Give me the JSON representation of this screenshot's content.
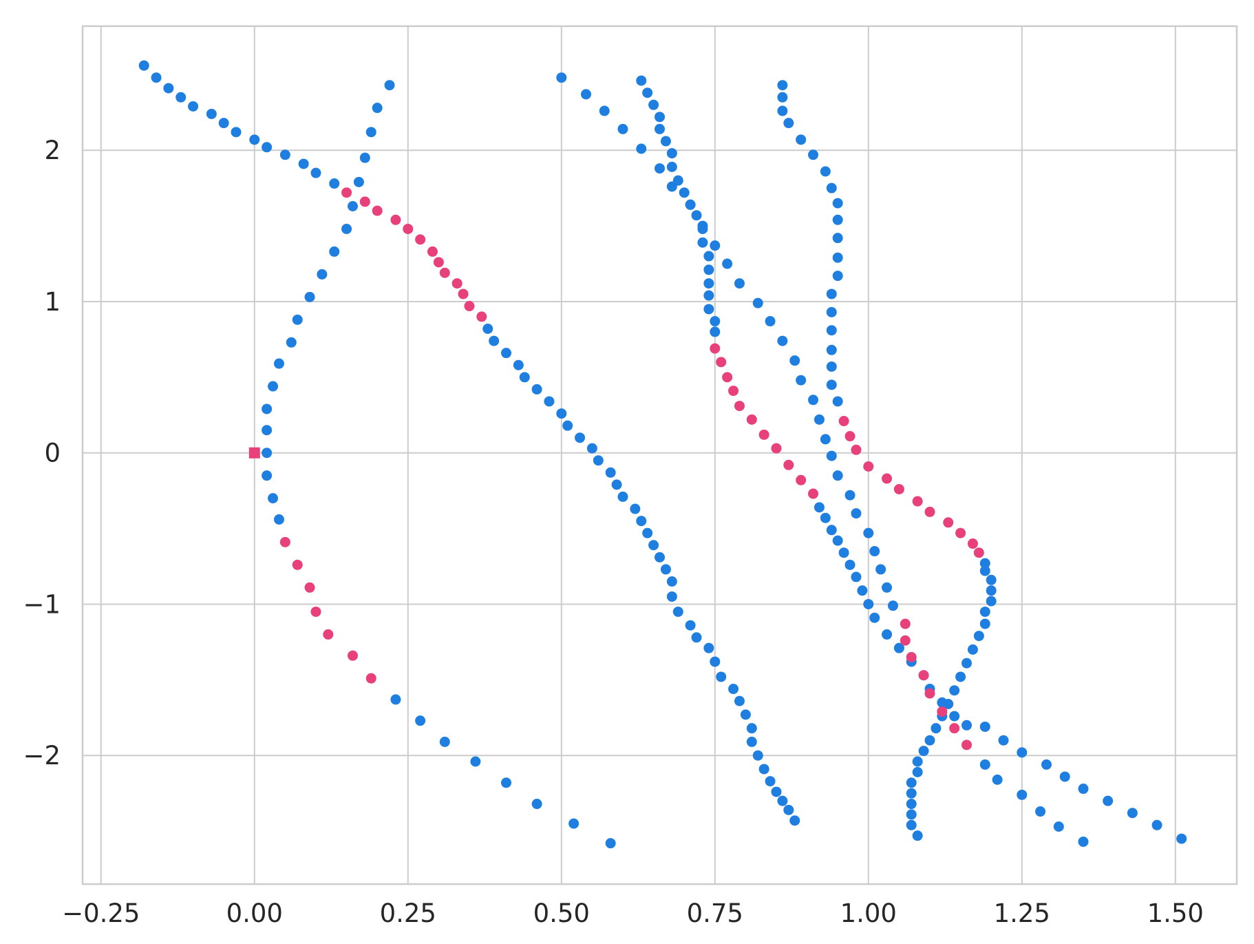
{
  "chart_data": {
    "type": "scatter",
    "title": "",
    "xlabel": "",
    "ylabel": "",
    "xlim": [
      -0.28,
      1.6
    ],
    "ylim": [
      -2.85,
      2.82
    ],
    "grid": true,
    "legend": "none",
    "x_ticks": [
      -0.25,
      0.0,
      0.25,
      0.5,
      0.75,
      1.0,
      1.25,
      1.5
    ],
    "x_tick_labels": [
      "−0.25",
      "0.00",
      "0.25",
      "0.50",
      "0.75",
      "1.00",
      "1.25",
      "1.50"
    ],
    "y_ticks": [
      -2,
      -1,
      0,
      1,
      2
    ],
    "y_tick_labels": [
      "−2",
      "−1",
      "0",
      "1",
      "2"
    ],
    "colors": {
      "blue": "#1e7fe0",
      "pink": "#e8407a"
    },
    "series": [
      {
        "color": "#1e7fe0",
        "marker": "circle",
        "points": [
          [
            -0.18,
            2.56
          ],
          [
            -0.16,
            2.48
          ],
          [
            -0.14,
            2.41
          ],
          [
            -0.12,
            2.35
          ],
          [
            -0.1,
            2.29
          ],
          [
            -0.07,
            2.24
          ],
          [
            -0.05,
            2.18
          ],
          [
            -0.03,
            2.12
          ],
          [
            0.0,
            2.07
          ],
          [
            0.02,
            2.02
          ],
          [
            0.05,
            1.97
          ],
          [
            0.08,
            1.91
          ],
          [
            0.1,
            1.85
          ],
          [
            0.13,
            1.78
          ],
          [
            0.22,
            2.43
          ],
          [
            0.2,
            2.28
          ],
          [
            0.19,
            2.12
          ],
          [
            0.18,
            1.95
          ],
          [
            0.17,
            1.79
          ],
          [
            0.16,
            1.63
          ],
          [
            0.15,
            1.48
          ],
          [
            0.13,
            1.33
          ],
          [
            0.11,
            1.18
          ],
          [
            0.09,
            1.03
          ],
          [
            0.07,
            0.88
          ],
          [
            0.06,
            0.73
          ],
          [
            0.04,
            0.59
          ],
          [
            0.03,
            0.44
          ],
          [
            0.02,
            0.29
          ],
          [
            0.02,
            0.15
          ],
          [
            0.02,
            0.0
          ],
          [
            0.02,
            -0.15
          ],
          [
            0.03,
            -0.3
          ],
          [
            0.04,
            -0.44
          ],
          [
            0.23,
            -1.63
          ],
          [
            0.27,
            -1.77
          ],
          [
            0.31,
            -1.91
          ],
          [
            0.36,
            -2.04
          ],
          [
            0.41,
            -2.18
          ],
          [
            0.46,
            -2.32
          ],
          [
            0.52,
            -2.45
          ],
          [
            0.58,
            -2.58
          ],
          [
            0.38,
            0.82
          ],
          [
            0.39,
            0.74
          ],
          [
            0.41,
            0.66
          ],
          [
            0.43,
            0.58
          ],
          [
            0.44,
            0.5
          ],
          [
            0.46,
            0.42
          ],
          [
            0.48,
            0.34
          ],
          [
            0.5,
            0.26
          ],
          [
            0.51,
            0.18
          ],
          [
            0.53,
            0.1
          ],
          [
            0.55,
            0.03
          ],
          [
            0.56,
            -0.05
          ],
          [
            0.58,
            -0.13
          ],
          [
            0.59,
            -0.21
          ],
          [
            0.6,
            -0.29
          ],
          [
            0.62,
            -0.37
          ],
          [
            0.63,
            -0.45
          ],
          [
            0.64,
            -0.53
          ],
          [
            0.65,
            -0.61
          ],
          [
            0.66,
            -0.69
          ],
          [
            0.67,
            -0.77
          ],
          [
            0.68,
            -0.85
          ],
          [
            0.68,
            -0.95
          ],
          [
            0.69,
            -1.05
          ],
          [
            0.71,
            -1.14
          ],
          [
            0.72,
            -1.22
          ],
          [
            0.74,
            -1.29
          ],
          [
            0.75,
            -1.38
          ],
          [
            0.76,
            -1.48
          ],
          [
            0.78,
            -1.56
          ],
          [
            0.79,
            -1.64
          ],
          [
            0.8,
            -1.73
          ],
          [
            0.81,
            -1.82
          ],
          [
            0.81,
            -1.91
          ],
          [
            0.82,
            -2.0
          ],
          [
            0.83,
            -2.09
          ],
          [
            0.84,
            -2.17
          ],
          [
            0.85,
            -2.24
          ],
          [
            0.86,
            -2.3
          ],
          [
            0.87,
            -2.36
          ],
          [
            0.88,
            -2.43
          ],
          [
            0.5,
            2.48
          ],
          [
            0.54,
            2.37
          ],
          [
            0.57,
            2.26
          ],
          [
            0.6,
            2.14
          ],
          [
            0.63,
            2.01
          ],
          [
            0.66,
            1.88
          ],
          [
            0.68,
            1.76
          ],
          [
            0.71,
            1.64
          ],
          [
            0.73,
            1.5
          ],
          [
            0.63,
            2.46
          ],
          [
            0.64,
            2.38
          ],
          [
            0.65,
            2.3
          ],
          [
            0.66,
            2.22
          ],
          [
            0.66,
            2.14
          ],
          [
            0.67,
            2.06
          ],
          [
            0.68,
            1.98
          ],
          [
            0.68,
            1.89
          ],
          [
            0.69,
            1.8
          ],
          [
            0.7,
            1.72
          ],
          [
            0.71,
            1.64
          ],
          [
            0.72,
            1.57
          ],
          [
            0.73,
            1.48
          ],
          [
            0.73,
            1.39
          ],
          [
            0.74,
            1.3
          ],
          [
            0.74,
            1.21
          ],
          [
            0.74,
            1.12
          ],
          [
            0.74,
            1.04
          ],
          [
            0.74,
            0.95
          ],
          [
            0.75,
            0.87
          ],
          [
            0.75,
            0.8
          ],
          [
            0.75,
            1.37
          ],
          [
            0.77,
            1.25
          ],
          [
            0.79,
            1.12
          ],
          [
            0.82,
            0.99
          ],
          [
            0.84,
            0.87
          ],
          [
            0.86,
            0.74
          ],
          [
            0.88,
            0.61
          ],
          [
            0.89,
            0.48
          ],
          [
            0.91,
            0.35
          ],
          [
            0.92,
            0.22
          ],
          [
            0.93,
            0.09
          ],
          [
            0.94,
            -0.02
          ],
          [
            0.95,
            -0.15
          ],
          [
            0.97,
            -0.28
          ],
          [
            0.98,
            -0.4
          ],
          [
            1.0,
            -0.53
          ],
          [
            1.01,
            -0.65
          ],
          [
            1.02,
            -0.77
          ],
          [
            1.03,
            -0.89
          ],
          [
            1.04,
            -1.01
          ],
          [
            0.86,
            2.43
          ],
          [
            0.86,
            2.35
          ],
          [
            0.86,
            2.26
          ],
          [
            0.87,
            2.18
          ],
          [
            0.89,
            2.07
          ],
          [
            0.91,
            1.97
          ],
          [
            0.93,
            1.86
          ],
          [
            0.94,
            1.75
          ],
          [
            0.95,
            1.65
          ],
          [
            0.95,
            1.54
          ],
          [
            0.95,
            1.42
          ],
          [
            0.95,
            1.29
          ],
          [
            0.95,
            1.17
          ],
          [
            0.94,
            1.05
          ],
          [
            0.94,
            0.93
          ],
          [
            0.94,
            0.81
          ],
          [
            0.94,
            0.68
          ],
          [
            0.94,
            0.57
          ],
          [
            0.94,
            0.45
          ],
          [
            0.95,
            0.34
          ],
          [
            0.92,
            -0.36
          ],
          [
            0.93,
            -0.43
          ],
          [
            0.94,
            -0.51
          ],
          [
            0.95,
            -0.58
          ],
          [
            0.96,
            -0.66
          ],
          [
            0.97,
            -0.74
          ],
          [
            0.98,
            -0.82
          ],
          [
            0.99,
            -0.91
          ],
          [
            1.0,
            -1.0
          ],
          [
            1.01,
            -1.09
          ],
          [
            1.03,
            -1.2
          ],
          [
            1.05,
            -1.29
          ],
          [
            1.07,
            -1.38
          ],
          [
            1.09,
            -1.47
          ],
          [
            1.1,
            -1.56
          ],
          [
            1.12,
            -1.65
          ],
          [
            1.14,
            -1.74
          ],
          [
            1.16,
            -1.8
          ],
          [
            1.19,
            -1.81
          ],
          [
            1.22,
            -1.9
          ],
          [
            1.25,
            -1.98
          ],
          [
            1.29,
            -2.06
          ],
          [
            1.32,
            -2.14
          ],
          [
            1.35,
            -2.22
          ],
          [
            1.39,
            -2.3
          ],
          [
            1.43,
            -2.38
          ],
          [
            1.47,
            -2.46
          ],
          [
            1.51,
            -2.55
          ],
          [
            1.19,
            -2.06
          ],
          [
            1.21,
            -2.16
          ],
          [
            1.25,
            -2.26
          ],
          [
            1.28,
            -2.37
          ],
          [
            1.31,
            -2.47
          ],
          [
            1.35,
            -2.57
          ],
          [
            1.19,
            -0.73
          ],
          [
            1.19,
            -0.78
          ],
          [
            1.2,
            -0.84
          ],
          [
            1.2,
            -0.91
          ],
          [
            1.2,
            -0.98
          ],
          [
            1.19,
            -1.05
          ],
          [
            1.19,
            -1.13
          ],
          [
            1.18,
            -1.21
          ],
          [
            1.17,
            -1.3
          ],
          [
            1.16,
            -1.39
          ],
          [
            1.15,
            -1.48
          ],
          [
            1.14,
            -1.57
          ],
          [
            1.13,
            -1.66
          ],
          [
            1.12,
            -1.74
          ],
          [
            1.11,
            -1.82
          ],
          [
            1.1,
            -1.9
          ],
          [
            1.09,
            -1.97
          ],
          [
            1.08,
            -2.04
          ],
          [
            1.08,
            -2.11
          ],
          [
            1.07,
            -2.18
          ],
          [
            1.07,
            -2.25
          ],
          [
            1.07,
            -2.32
          ],
          [
            1.07,
            -2.39
          ],
          [
            1.07,
            -2.46
          ],
          [
            1.08,
            -2.53
          ]
        ]
      },
      {
        "color": "#e8407a",
        "marker": "circle",
        "points": [
          [
            0.15,
            1.72
          ],
          [
            0.18,
            1.66
          ],
          [
            0.2,
            1.6
          ],
          [
            0.23,
            1.54
          ],
          [
            0.25,
            1.48
          ],
          [
            0.27,
            1.41
          ],
          [
            0.29,
            1.33
          ],
          [
            0.3,
            1.26
          ],
          [
            0.31,
            1.19
          ],
          [
            0.33,
            1.12
          ],
          [
            0.34,
            1.05
          ],
          [
            0.35,
            0.97
          ],
          [
            0.37,
            0.9
          ],
          [
            0.05,
            -0.59
          ],
          [
            0.07,
            -0.74
          ],
          [
            0.09,
            -0.89
          ],
          [
            0.1,
            -1.05
          ],
          [
            0.12,
            -1.2
          ],
          [
            0.16,
            -1.34
          ],
          [
            0.19,
            -1.49
          ],
          [
            0.75,
            0.69
          ],
          [
            0.76,
            0.6
          ],
          [
            0.77,
            0.5
          ],
          [
            0.78,
            0.41
          ],
          [
            0.79,
            0.31
          ],
          [
            0.81,
            0.22
          ],
          [
            0.83,
            0.12
          ],
          [
            0.85,
            0.03
          ],
          [
            0.87,
            -0.08
          ],
          [
            0.89,
            -0.18
          ],
          [
            0.91,
            -0.27
          ],
          [
            0.96,
            0.21
          ],
          [
            0.97,
            0.11
          ],
          [
            0.98,
            0.02
          ],
          [
            1.0,
            -0.09
          ],
          [
            1.03,
            -0.17
          ],
          [
            1.05,
            -0.24
          ],
          [
            1.08,
            -0.32
          ],
          [
            1.1,
            -0.39
          ],
          [
            1.13,
            -0.46
          ],
          [
            1.15,
            -0.53
          ],
          [
            1.17,
            -0.6
          ],
          [
            1.18,
            -0.66
          ],
          [
            1.06,
            -1.13
          ],
          [
            1.06,
            -1.24
          ],
          [
            1.07,
            -1.35
          ],
          [
            1.09,
            -1.47
          ],
          [
            1.1,
            -1.59
          ],
          [
            1.12,
            -1.71
          ],
          [
            1.14,
            -1.82
          ],
          [
            1.16,
            -1.93
          ]
        ]
      },
      {
        "color": "#e8407a",
        "marker": "square",
        "points": [
          [
            0.0,
            0.0
          ]
        ]
      }
    ]
  }
}
